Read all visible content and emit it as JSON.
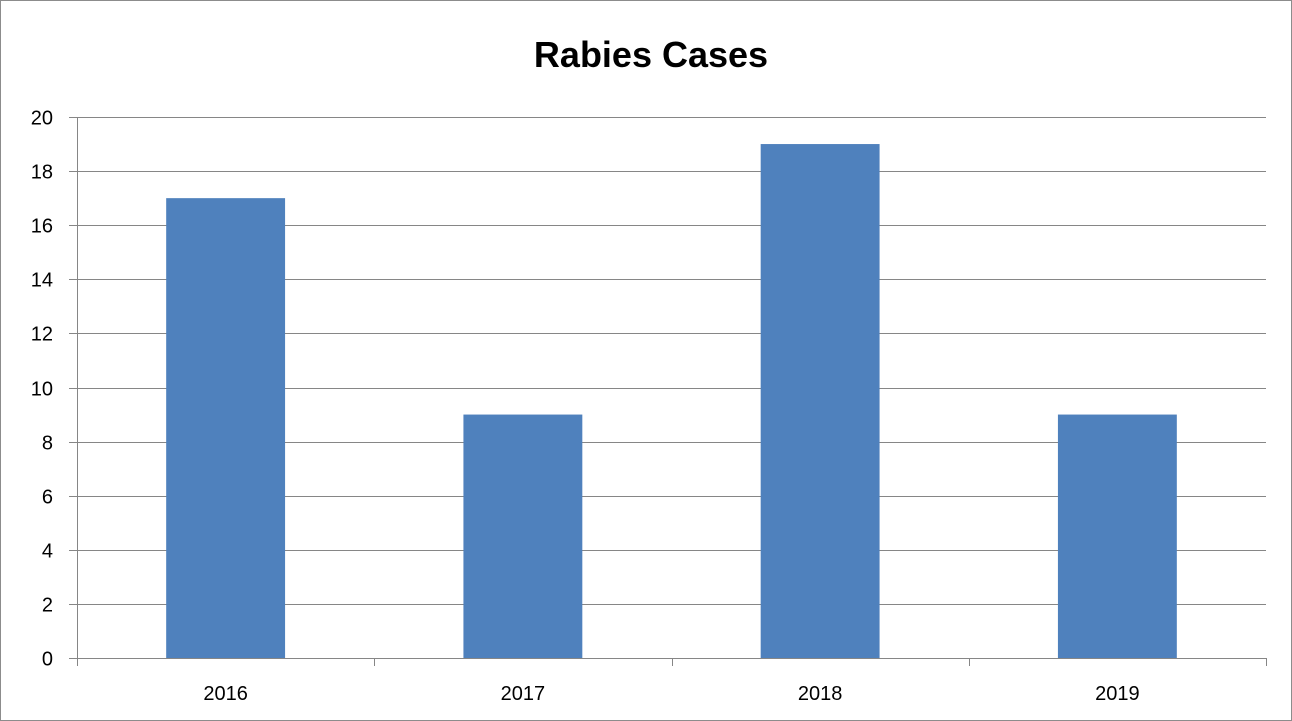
{
  "chart_data": {
    "type": "bar",
    "title": "Rabies Cases",
    "xlabel": "",
    "ylabel": "",
    "categories": [
      "2016",
      "2017",
      "2018",
      "2019"
    ],
    "values": [
      17,
      9,
      19,
      9
    ],
    "ylim": [
      0,
      20
    ],
    "yticks": [
      "0",
      "2",
      "4",
      "6",
      "8",
      "10",
      "12",
      "14",
      "16",
      "18",
      "20"
    ],
    "grid": true,
    "legend": "none",
    "colors": {
      "bar": "#4f81bd",
      "gridline": "#868686",
      "axis": "#868686"
    }
  }
}
